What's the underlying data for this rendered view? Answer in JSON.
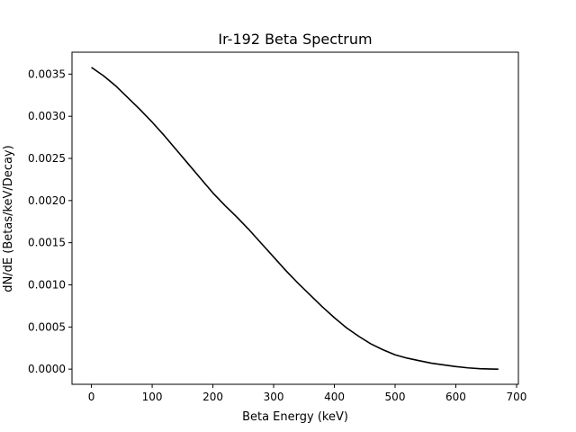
{
  "chart_data": {
    "type": "line",
    "title": "Ir-192 Beta Spectrum",
    "xlabel": "Beta Energy (keV)",
    "ylabel": "dN/dE (Betas/keV/Decay)",
    "xlim": [
      -32,
      703
    ],
    "ylim": [
      -0.00018,
      0.00376
    ],
    "xticks": [
      0,
      100,
      200,
      300,
      400,
      500,
      600,
      700
    ],
    "xtick_labels": [
      "0",
      "100",
      "200",
      "300",
      "400",
      "500",
      "600",
      "700"
    ],
    "yticks": [
      0.0,
      0.0005,
      0.001,
      0.0015,
      0.002,
      0.0025,
      0.003,
      0.0035
    ],
    "ytick_labels": [
      "0.0000",
      "0.0005",
      "0.0010",
      "0.0015",
      "0.0020",
      "0.0025",
      "0.0030",
      "0.0035"
    ],
    "grid": false,
    "line_color": "#000000",
    "series": [
      {
        "x": [
          0,
          20,
          40,
          60,
          80,
          100,
          120,
          140,
          160,
          180,
          200,
          220,
          240,
          260,
          280,
          300,
          320,
          340,
          360,
          380,
          400,
          420,
          440,
          460,
          480,
          500,
          520,
          540,
          560,
          580,
          600,
          620,
          640,
          660,
          670
        ],
        "values": [
          0.00358,
          0.00348,
          0.00336,
          0.00322,
          0.00308,
          0.00293,
          0.00277,
          0.0026,
          0.00243,
          0.00226,
          0.00209,
          0.00194,
          0.0018,
          0.00165,
          0.00149,
          0.00133,
          0.00117,
          0.00102,
          0.00088,
          0.00074,
          0.00061,
          0.00049,
          0.00039,
          0.0003,
          0.00023,
          0.00017,
          0.00013,
          0.0001,
          7e-05,
          5e-05,
          3e-05,
          1.5e-05,
          5e-06,
          1e-06,
          0.0
        ]
      }
    ]
  }
}
